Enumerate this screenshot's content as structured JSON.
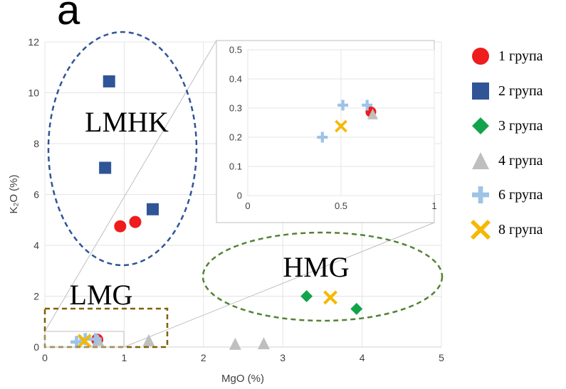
{
  "panel_label": "a",
  "chart_data": [
    {
      "type": "scatter",
      "xlabel": "MgO (%)",
      "ylabel": "K₂O (%)",
      "xlim": [
        0,
        5
      ],
      "ylim": [
        0,
        12
      ],
      "x_ticks": [
        "0",
        "1",
        "2",
        "3",
        "4",
        "5"
      ],
      "y_ticks": [
        "0",
        "2",
        "4",
        "6",
        "8",
        "10",
        "12"
      ],
      "grid": true,
      "legend_position": "right",
      "series": [
        {
          "name": "1 група",
          "marker": "circle",
          "color": "#ee1c1c",
          "points": [
            {
              "x": 0.95,
              "y": 4.75
            },
            {
              "x": 1.14,
              "y": 4.92
            },
            {
              "x": 0.66,
              "y": 0.29
            }
          ]
        },
        {
          "name": "2 група",
          "marker": "square",
          "color": "#2f5597",
          "points": [
            {
              "x": 0.81,
              "y": 10.45
            },
            {
              "x": 0.76,
              "y": 7.05
            },
            {
              "x": 1.36,
              "y": 5.42
            }
          ]
        },
        {
          "name": "3 група",
          "marker": "diamond",
          "color": "#12a44b",
          "points": [
            {
              "x": 3.3,
              "y": 2.0
            },
            {
              "x": 3.93,
              "y": 1.5
            }
          ]
        },
        {
          "name": "4 група",
          "marker": "triangle",
          "color": "#bfbfbf",
          "points": [
            {
              "x": 1.31,
              "y": 0.27
            },
            {
              "x": 2.4,
              "y": 0.13
            },
            {
              "x": 2.76,
              "y": 0.15
            },
            {
              "x": 0.67,
              "y": 0.28
            }
          ]
        },
        {
          "name": "6 група",
          "marker": "plus",
          "color": "#9dc3e6",
          "points": [
            {
              "x": 0.4,
              "y": 0.2
            },
            {
              "x": 0.51,
              "y": 0.31
            },
            {
              "x": 0.64,
              "y": 0.31
            }
          ]
        },
        {
          "name": "8 група",
          "marker": "x",
          "color": "#f5b800",
          "points": [
            {
              "x": 0.5,
              "y": 0.24
            },
            {
              "x": 3.6,
              "y": 1.95
            }
          ]
        }
      ],
      "annotations": [
        {
          "text": "LMHK",
          "shape": "ellipse",
          "color": "#2f5597"
        },
        {
          "text": "HMG",
          "shape": "ellipse",
          "color": "#548235"
        },
        {
          "text": "LMG",
          "shape": "rectangle",
          "color": "#7f6000"
        }
      ]
    },
    {
      "type": "scatter",
      "role": "inset zoom",
      "xlim": [
        0,
        1
      ],
      "ylim": [
        0,
        0.5
      ],
      "x_ticks": [
        "0",
        "0.5",
        "1"
      ],
      "y_ticks": [
        "0",
        "0.1",
        "0.2",
        "0.3",
        "0.4",
        "0.5"
      ],
      "grid": true,
      "series": [
        {
          "name": "1 група",
          "marker": "circle",
          "color": "#ee1c1c",
          "points": [
            {
              "x": 0.66,
              "y": 0.287
            }
          ]
        },
        {
          "name": "4 група",
          "marker": "triangle",
          "color": "#bfbfbf",
          "points": [
            {
              "x": 0.67,
              "y": 0.28
            }
          ]
        },
        {
          "name": "6 група",
          "marker": "plus",
          "color": "#9dc3e6",
          "points": [
            {
              "x": 0.4,
              "y": 0.2
            },
            {
              "x": 0.51,
              "y": 0.31
            },
            {
              "x": 0.64,
              "y": 0.31
            }
          ]
        },
        {
          "name": "8 група",
          "marker": "x",
          "color": "#f5b800",
          "points": [
            {
              "x": 0.5,
              "y": 0.238
            }
          ]
        }
      ]
    }
  ]
}
